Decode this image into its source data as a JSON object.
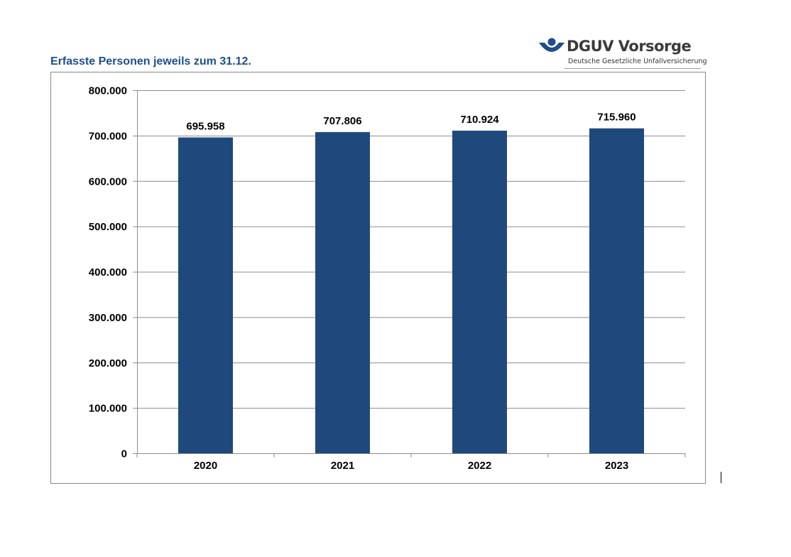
{
  "title": "Erfasste Personen jeweils zum 31.12.",
  "logo": {
    "name": "DGUV Vorsorge",
    "subtitle": "Deutsche Gesetzliche Unfallversicherung",
    "color": "#1f4e8a"
  },
  "chart_data": {
    "type": "bar",
    "title": "Erfasste Personen jeweils zum 31.12.",
    "categories": [
      "2020",
      "2021",
      "2022",
      "2023"
    ],
    "values": [
      695958,
      707806,
      710924,
      715960
    ],
    "data_labels": [
      "695.958",
      "707.806",
      "710.924",
      "715.960"
    ],
    "ylim": [
      0,
      800000
    ],
    "yticks": [
      0,
      100000,
      200000,
      300000,
      400000,
      500000,
      600000,
      700000,
      800000
    ],
    "ytick_labels": [
      "0",
      "100.000",
      "200.000",
      "300.000",
      "400.000",
      "500.000",
      "600.000",
      "700.000",
      "800.000"
    ],
    "xlabel": "",
    "ylabel": "",
    "grid": true,
    "bar_color": "#1f497d"
  }
}
